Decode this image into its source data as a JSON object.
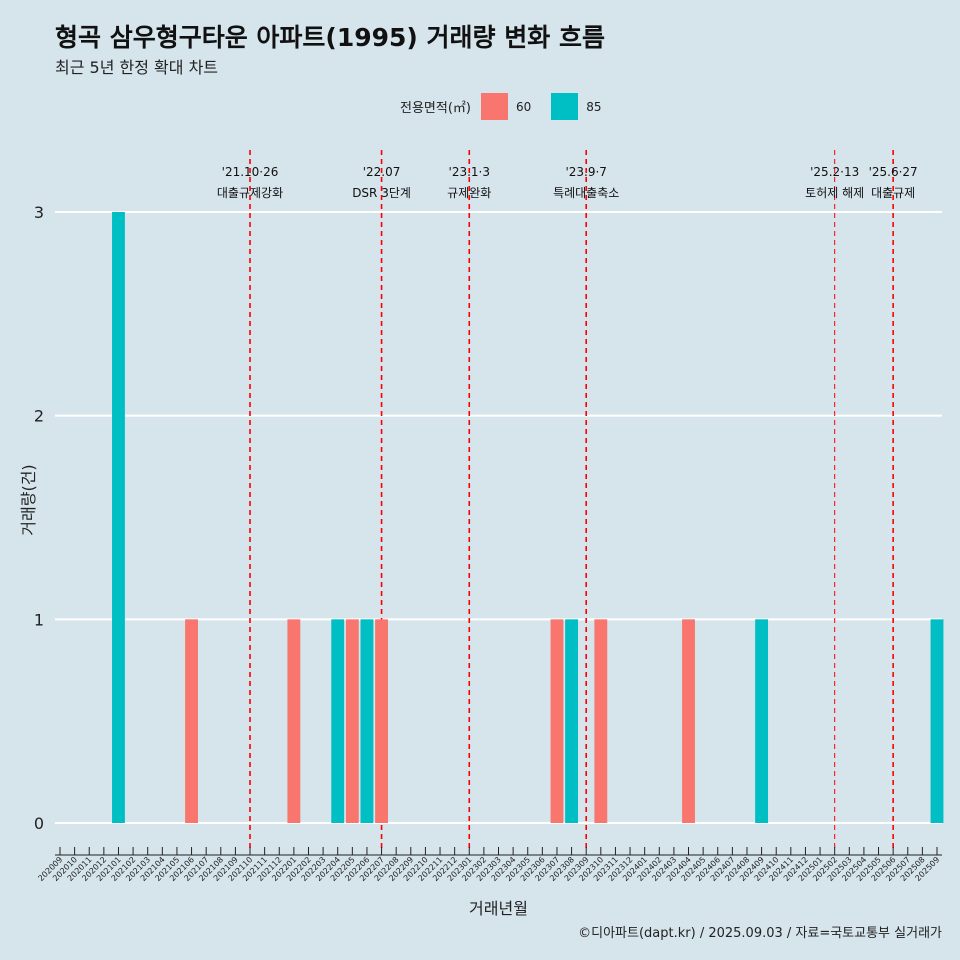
{
  "header": {
    "title": "형곡 삼우형구타운 아파트(1995) 거래량 변화 흐름",
    "subtitle": "최근 5년 한정 확대 차트"
  },
  "legend": {
    "title": "전용면적(㎡)",
    "items": [
      {
        "label": "60",
        "color": "#f8766d"
      },
      {
        "label": "85",
        "color": "#00bfc4"
      }
    ]
  },
  "caption": "©디아파트(dapt.kr) / 2025.09.03 / 자료=국토교통부 실거래가",
  "chart_data": {
    "type": "bar",
    "xlabel": "거래년월",
    "ylabel": "거래량(건)",
    "ylim": [
      0,
      3
    ],
    "yticks": [
      0,
      1,
      2,
      3
    ],
    "grid": true,
    "legend_position": "top",
    "categories": [
      "202009",
      "202010",
      "202011",
      "202012",
      "202101",
      "202102",
      "202103",
      "202104",
      "202105",
      "202106",
      "202107",
      "202108",
      "202109",
      "202110",
      "202111",
      "202112",
      "202201",
      "202202",
      "202203",
      "202204",
      "202205",
      "202206",
      "202207",
      "202208",
      "202209",
      "202210",
      "202211",
      "202212",
      "202301",
      "202302",
      "202303",
      "202304",
      "202305",
      "202306",
      "202307",
      "202308",
      "202309",
      "202310",
      "202311",
      "202312",
      "202401",
      "202402",
      "202403",
      "202404",
      "202405",
      "202406",
      "202407",
      "202408",
      "202409",
      "202410",
      "202411",
      "202412",
      "202501",
      "202502",
      "202503",
      "202504",
      "202505",
      "202506",
      "202507",
      "202508",
      "202509"
    ],
    "bars": [
      {
        "month": "202101",
        "series": "85",
        "value": 3
      },
      {
        "month": "202106",
        "series": "60",
        "value": 1
      },
      {
        "month": "202201",
        "series": "60",
        "value": 1
      },
      {
        "month": "202204",
        "series": "85",
        "value": 1
      },
      {
        "month": "202205",
        "series": "60",
        "value": 1
      },
      {
        "month": "202206",
        "series": "85",
        "value": 1
      },
      {
        "month": "202207",
        "series": "60",
        "value": 1
      },
      {
        "month": "202307",
        "series": "60",
        "value": 1
      },
      {
        "month": "202308",
        "series": "85",
        "value": 1
      },
      {
        "month": "202310",
        "series": "60",
        "value": 1
      },
      {
        "month": "202404",
        "series": "60",
        "value": 1
      },
      {
        "month": "202409",
        "series": "85",
        "value": 1
      },
      {
        "month": "202509",
        "series": "85",
        "value": 1
      }
    ],
    "annotations": [
      {
        "month": "202110",
        "date": "'21.10·26",
        "label": "대출규제강화"
      },
      {
        "month": "202207",
        "date": "'22.07",
        "label": "DSR 3단계"
      },
      {
        "month": "202301",
        "date": "'23.1·3",
        "label": "규제완화"
      },
      {
        "month": "202309",
        "date": "'23.9·7",
        "label": "특례대출축소"
      },
      {
        "month": "202502",
        "date": "'25.2·13",
        "label": "토허제 해제"
      },
      {
        "month": "202506",
        "date": "'25.6·27",
        "label": "대출규제"
      }
    ],
    "annotation_color": "#ff0000"
  }
}
